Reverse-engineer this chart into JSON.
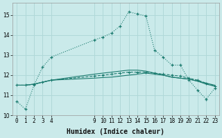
{
  "xlabel": "Humidex (Indice chaleur)",
  "background_color": "#caeaea",
  "grid_color": "#b0d8d8",
  "line_color": "#1a7a6e",
  "xlim": [
    -0.5,
    23.5
  ],
  "ylim": [
    10.0,
    15.6
  ],
  "yticks": [
    10,
    11,
    12,
    13,
    14,
    15
  ],
  "xticks": [
    0,
    1,
    2,
    3,
    4,
    9,
    10,
    11,
    12,
    13,
    14,
    15,
    16,
    17,
    18,
    19,
    20,
    21,
    22,
    23
  ],
  "hours": [
    0,
    1,
    2,
    3,
    4,
    9,
    10,
    11,
    12,
    13,
    14,
    15,
    16,
    17,
    18,
    19,
    20,
    21,
    22,
    23
  ],
  "series1": [
    10.7,
    10.3,
    11.5,
    12.4,
    12.9,
    13.75,
    13.9,
    14.1,
    14.45,
    15.15,
    15.05,
    14.95,
    13.25,
    12.9,
    12.5,
    12.5,
    11.75,
    11.25,
    10.8,
    11.35
  ],
  "series2": [
    11.5,
    11.5,
    11.55,
    11.65,
    11.75,
    11.85,
    11.88,
    11.9,
    11.95,
    12.0,
    12.05,
    12.1,
    12.05,
    12.0,
    11.9,
    11.85,
    11.8,
    11.7,
    11.6,
    11.5
  ],
  "series3": [
    11.5,
    11.5,
    11.55,
    11.65,
    11.75,
    12.05,
    12.1,
    12.15,
    12.2,
    12.25,
    12.25,
    12.2,
    12.1,
    12.0,
    11.9,
    11.85,
    11.8,
    11.7,
    11.55,
    11.45
  ],
  "series4": [
    11.5,
    11.5,
    11.55,
    11.65,
    11.75,
    11.95,
    12.0,
    12.05,
    12.1,
    12.15,
    12.15,
    12.15,
    12.1,
    12.05,
    12.0,
    11.95,
    11.85,
    11.75,
    11.6,
    11.45
  ]
}
